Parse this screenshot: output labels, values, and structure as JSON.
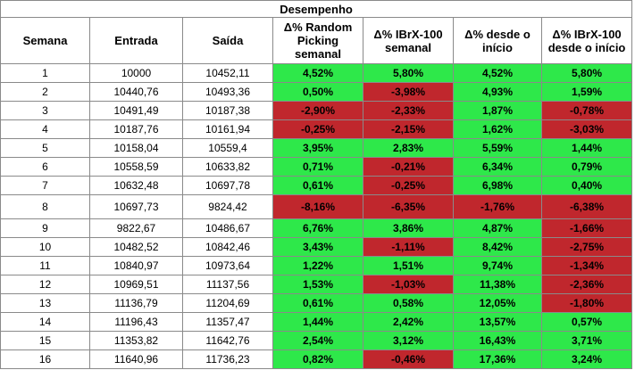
{
  "table": {
    "title": "Desempenho",
    "headers": [
      "Semana",
      "Entrada",
      "Saída",
      "Δ% Random Picking semanal",
      "Δ% IBrX-100 semanal",
      "Δ% desde o início",
      "Δ% IBrX-100 desde o início"
    ],
    "rows": [
      {
        "cells": [
          "1",
          "10000",
          "10452,11",
          "4,52%",
          "5,80%",
          "4,52%",
          "5,80%"
        ],
        "status": [
          "pos",
          "pos",
          "pos",
          "pos"
        ]
      },
      {
        "cells": [
          "2",
          "10440,76",
          "10493,36",
          "0,50%",
          "-3,98%",
          "4,93%",
          "1,59%"
        ],
        "status": [
          "pos",
          "neg",
          "pos",
          "pos"
        ]
      },
      {
        "cells": [
          "3",
          "10491,49",
          "10187,38",
          "-2,90%",
          "-2,33%",
          "1,87%",
          "-0,78%"
        ],
        "status": [
          "neg",
          "neg",
          "pos",
          "neg"
        ]
      },
      {
        "cells": [
          "4",
          "10187,76",
          "10161,94",
          "-0,25%",
          "-2,15%",
          "1,62%",
          "-3,03%"
        ],
        "status": [
          "neg",
          "neg",
          "pos",
          "neg"
        ]
      },
      {
        "cells": [
          "5",
          "10158,04",
          "10559,4",
          "3,95%",
          "2,83%",
          "5,59%",
          "1,44%"
        ],
        "status": [
          "pos",
          "pos",
          "pos",
          "pos"
        ]
      },
      {
        "cells": [
          "6",
          "10558,59",
          "10633,82",
          "0,71%",
          "-0,21%",
          "6,34%",
          "0,79%"
        ],
        "status": [
          "pos",
          "neg",
          "pos",
          "pos"
        ]
      },
      {
        "cells": [
          "7",
          "10632,48",
          "10697,78",
          "0,61%",
          "-0,25%",
          "6,98%",
          "0,40%"
        ],
        "status": [
          "pos",
          "neg",
          "pos",
          "pos"
        ]
      },
      {
        "cells": [
          "8",
          "10697,73",
          "9824,42",
          "-8,16%",
          "-6,35%",
          "-1,76%",
          "-6,38%"
        ],
        "status": [
          "neg",
          "neg",
          "neg",
          "neg"
        ],
        "tall": true
      },
      {
        "cells": [
          "9",
          "9822,67",
          "10486,67",
          "6,76%",
          "3,86%",
          "4,87%",
          "-1,66%"
        ],
        "status": [
          "pos",
          "pos",
          "pos",
          "neg"
        ]
      },
      {
        "cells": [
          "10",
          "10482,52",
          "10842,46",
          "3,43%",
          "-1,11%",
          "8,42%",
          "-2,75%"
        ],
        "status": [
          "pos",
          "neg",
          "pos",
          "neg"
        ]
      },
      {
        "cells": [
          "11",
          "10840,97",
          "10973,64",
          "1,22%",
          "1,51%",
          "9,74%",
          "-1,34%"
        ],
        "status": [
          "pos",
          "pos",
          "pos",
          "neg"
        ]
      },
      {
        "cells": [
          "12",
          "10969,51",
          "11137,56",
          "1,53%",
          "-1,03%",
          "11,38%",
          "-2,36%"
        ],
        "status": [
          "pos",
          "neg",
          "pos",
          "neg"
        ]
      },
      {
        "cells": [
          "13",
          "11136,79",
          "11204,69",
          "0,61%",
          "0,58%",
          "12,05%",
          "-1,80%"
        ],
        "status": [
          "pos",
          "pos",
          "pos",
          "neg"
        ]
      },
      {
        "cells": [
          "14",
          "11196,43",
          "11357,47",
          "1,44%",
          "2,42%",
          "13,57%",
          "0,57%"
        ],
        "status": [
          "pos",
          "pos",
          "pos",
          "pos"
        ]
      },
      {
        "cells": [
          "15",
          "11353,82",
          "11642,76",
          "2,54%",
          "3,12%",
          "16,43%",
          "3,71%"
        ],
        "status": [
          "pos",
          "pos",
          "pos",
          "pos"
        ]
      },
      {
        "cells": [
          "16",
          "11640,96",
          "11736,23",
          "0,82%",
          "-0,46%",
          "17,36%",
          "3,24%"
        ],
        "status": [
          "pos",
          "neg",
          "pos",
          "pos"
        ]
      }
    ]
  },
  "colors": {
    "positive": "#2ee84a",
    "negative": "#c0272d",
    "grid": "#8a8a8a"
  }
}
